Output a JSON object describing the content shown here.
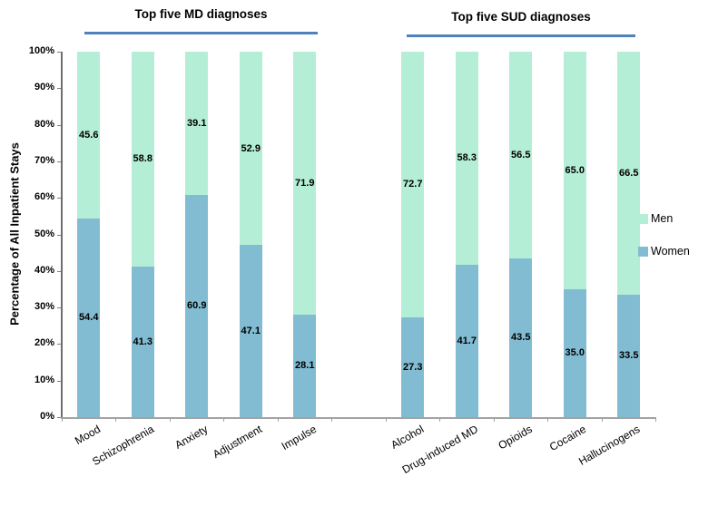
{
  "figure": {
    "group_headers": [
      {
        "label": "Top five MD diagnoses"
      },
      {
        "label": "Top five SUD diagnoses"
      }
    ],
    "ylabel": "Percentage of All Inpatient Stays",
    "legend": [
      {
        "label": "Men",
        "color": "#b4eed6"
      },
      {
        "label": "Women",
        "color": "#82bcd2"
      }
    ],
    "header_underline_color": "#4f81bd"
  },
  "chart_data": {
    "type": "bar",
    "stacked": true,
    "ylabel": "Percentage of All Inpatient Stays",
    "ylim": [
      0,
      100
    ],
    "yticks": [
      "0%",
      "10%",
      "20%",
      "30%",
      "40%",
      "50%",
      "60%",
      "70%",
      "80%",
      "90%",
      "100%"
    ],
    "grid": false,
    "legend_position": "right",
    "groups": [
      {
        "title": "Top five MD diagnoses",
        "categories": [
          "Mood",
          "Schizophrenia",
          "Anxiety",
          "Adjustment",
          "Impulse"
        ]
      },
      {
        "title": "Top five SUD diagnoses",
        "categories": [
          "Alcohol",
          "Drug-induced MD",
          "Opioids",
          "Cocaine",
          "Hallucinogens"
        ]
      }
    ],
    "categories": [
      "Mood",
      "Schizophrenia",
      "Anxiety",
      "Adjustment",
      "Impulse",
      "Alcohol",
      "Drug-induced MD",
      "Opioids",
      "Cocaine",
      "Hallucinogens"
    ],
    "series": [
      {
        "name": "Women",
        "color": "#82bcd2",
        "values": [
          54.4,
          41.3,
          60.9,
          47.1,
          28.1,
          27.3,
          41.7,
          43.5,
          35.0,
          33.5
        ],
        "labels": [
          "54.4",
          "41.3",
          "60.9",
          "47.1",
          "28.1",
          "27.3",
          "41.7",
          "43.5",
          "35.0",
          "33.5"
        ]
      },
      {
        "name": "Men",
        "color": "#b4eed6",
        "values": [
          45.6,
          58.8,
          39.1,
          52.9,
          71.9,
          72.7,
          58.3,
          56.5,
          65.0,
          66.5
        ],
        "labels": [
          "45.6",
          "58.8",
          "39.1",
          "52.9",
          "71.9",
          "72.7",
          "58.3",
          "56.5",
          "65.0",
          "66.5"
        ]
      }
    ]
  }
}
